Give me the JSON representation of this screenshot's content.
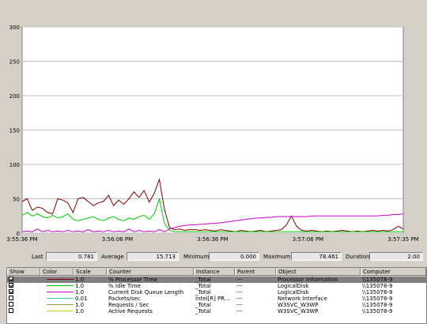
{
  "chart_data": {
    "type": "line",
    "y_ticks": [
      "300",
      "250",
      "200",
      "150",
      "100",
      "50",
      "0"
    ],
    "x_ticks": [
      "3:55:36 PM",
      "3:56:06 PM",
      "3:56:36 PM",
      "3:57:06 PM",
      "3:57:35 PM"
    ],
    "ylim": [
      0,
      300
    ],
    "grid": true,
    "series": [
      {
        "name": "% Processor Time",
        "color": "#800000",
        "values": [
          46,
          50,
          33,
          38,
          36,
          30,
          28,
          50,
          48,
          44,
          30,
          50,
          52,
          46,
          40,
          44,
          46,
          55,
          40,
          48,
          42,
          50,
          60,
          52,
          62,
          45,
          58,
          78,
          35,
          8,
          5,
          6,
          4,
          5,
          5,
          4,
          5,
          4,
          3,
          5,
          4,
          3,
          2,
          4,
          3,
          2,
          3,
          4,
          2,
          3,
          4,
          5,
          12,
          25,
          10,
          4,
          3,
          4,
          3,
          2,
          3,
          2,
          3,
          4,
          3,
          2,
          3,
          2,
          3,
          4,
          3,
          4,
          3,
          5,
          10,
          6
        ]
      },
      {
        "name": "% Idle Time",
        "color": "#00cc00",
        "values": [
          26,
          30,
          25,
          28,
          24,
          22,
          26,
          22,
          24,
          28,
          20,
          18,
          20,
          22,
          24,
          20,
          18,
          22,
          24,
          20,
          18,
          22,
          20,
          24,
          26,
          20,
          28,
          50,
          14,
          4,
          2,
          2,
          2,
          2,
          2,
          2,
          2,
          2,
          2,
          2,
          2,
          2,
          2,
          2,
          2,
          2,
          2,
          2,
          2,
          2,
          2,
          2,
          2,
          2,
          2,
          2,
          2,
          2,
          2,
          2,
          2,
          2,
          2,
          2,
          2,
          2,
          2,
          2,
          2,
          2,
          2,
          2,
          2,
          2,
          2,
          2
        ]
      },
      {
        "name": "Current Disk Queue Length",
        "color": "#cc00cc",
        "values": [
          2,
          3,
          2,
          6,
          2,
          4,
          2,
          3,
          2,
          4,
          2,
          3,
          2,
          5,
          2,
          3,
          2,
          4,
          2,
          3,
          2,
          6,
          2,
          4,
          2,
          3,
          2,
          5,
          2,
          6,
          8,
          10,
          11,
          12,
          12,
          13,
          13,
          14,
          14,
          15,
          16,
          17,
          18,
          19,
          20,
          21,
          22,
          22,
          23,
          23,
          24,
          24,
          24,
          24,
          24,
          24,
          24,
          25,
          25,
          25,
          25,
          25,
          25,
          25,
          25,
          25,
          25,
          25,
          25,
          25,
          25,
          26,
          26,
          27,
          27,
          28
        ]
      }
    ]
  },
  "stats": {
    "last_label": "Last",
    "last_value": "0.781",
    "average_label": "Average",
    "average_value": "15.713",
    "minimum_label": "Minimum",
    "minimum_value": "0.000",
    "maximum_label": "Maximum",
    "maximum_value": "78.461",
    "duration_label": "Duration",
    "duration_value": "2:00"
  },
  "legend": {
    "headers": {
      "show": "Show",
      "color": "Color",
      "scale": "Scale",
      "counter": "Counter",
      "instance": "Instance",
      "parent": "Parent",
      "object": "Object",
      "computer": "Computer"
    },
    "rows": [
      {
        "checked": true,
        "color": "#800000",
        "scale": "1.0",
        "counter": "% Processor Time",
        "instance": "_Total",
        "parent": "---",
        "object": "Processor Information",
        "computer": "\\\\135078-9"
      },
      {
        "checked": true,
        "color": "#00cc00",
        "scale": "1.0",
        "counter": "% Idle Time",
        "instance": "_Total",
        "parent": "---",
        "object": "LogicalDisk",
        "computer": "\\\\135078-9"
      },
      {
        "checked": true,
        "color": "#cc00cc",
        "scale": "1.0",
        "counter": "Current Disk Queue Length",
        "instance": "_Total",
        "parent": "---",
        "object": "LogicalDisk",
        "computer": "\\\\135078-9"
      },
      {
        "checked": false,
        "color": "#33cccc",
        "scale": "0.01",
        "counter": "Packets/sec",
        "instance": "Intel[R] PR...",
        "parent": "---",
        "object": "Network Interface",
        "computer": "\\\\135078-9"
      },
      {
        "checked": false,
        "color": "#999933",
        "scale": "1.0",
        "counter": "Requests / Sec",
        "instance": "_Total",
        "parent": "---",
        "object": "W3SVC_W3WP",
        "computer": "\\\\135078-9"
      },
      {
        "checked": false,
        "color": "#cccc00",
        "scale": "1.0",
        "counter": "Active Requests",
        "instance": "_Total",
        "parent": "---",
        "object": "W3SVC_W3WP",
        "computer": "\\\\135078-9"
      }
    ]
  }
}
